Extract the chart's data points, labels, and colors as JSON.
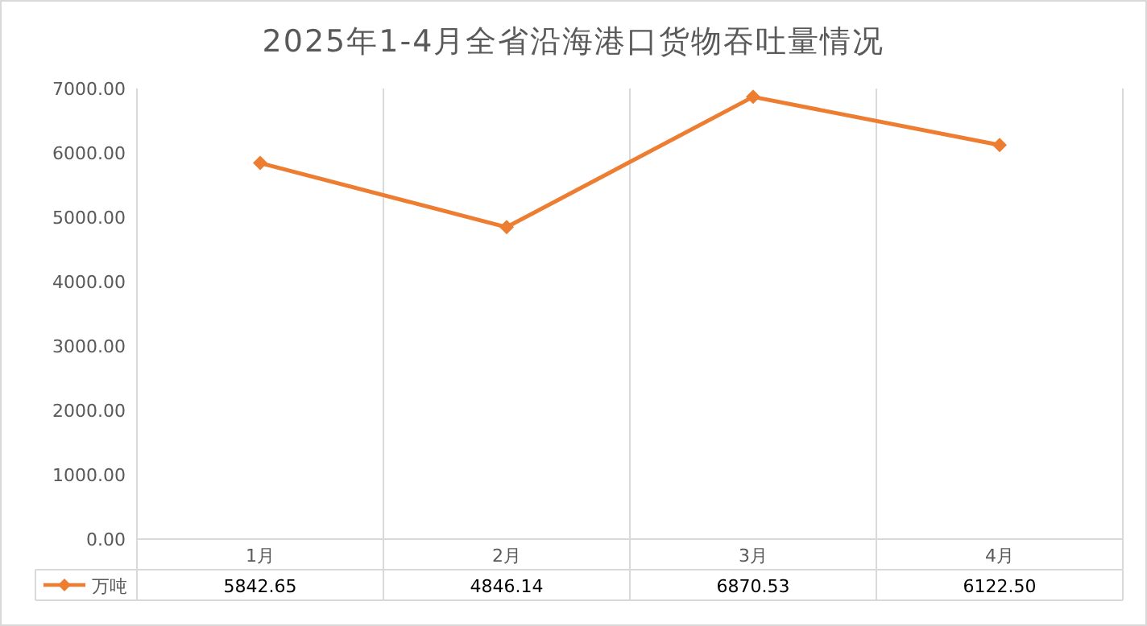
{
  "chart_data": {
    "type": "line",
    "title": "2025年1-4月全省沿海港口货物吞吐量情况",
    "categories": [
      "1月",
      "2月",
      "3月",
      "4月"
    ],
    "series": [
      {
        "name": "万吨",
        "color": "#ed7d31",
        "values": [
          5842.65,
          4846.14,
          6870.53,
          6122.5
        ],
        "value_labels": [
          "5842.65",
          "4846.14",
          "6870.53",
          "6122.50"
        ]
      }
    ],
    "ylim": [
      0,
      7000
    ],
    "yticks": [
      {
        "value": 0,
        "label": "0.00"
      },
      {
        "value": 1000,
        "label": "1000.00"
      },
      {
        "value": 2000,
        "label": "2000.00"
      },
      {
        "value": 3000,
        "label": "3000.00"
      },
      {
        "value": 4000,
        "label": "4000.00"
      },
      {
        "value": 5000,
        "label": "5000.00"
      },
      {
        "value": 6000,
        "label": "6000.00"
      },
      {
        "value": 7000,
        "label": "7000.00"
      }
    ],
    "grid": "x",
    "legend": "bottom",
    "marker": "diamond"
  }
}
